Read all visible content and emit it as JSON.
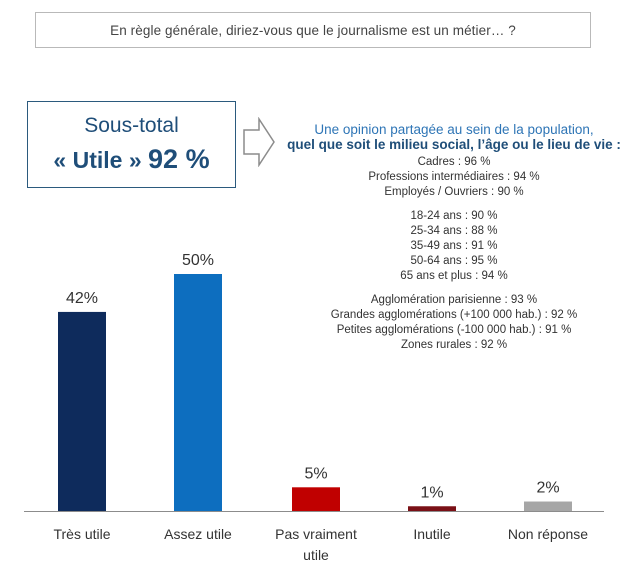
{
  "question": "En règle générale, diriez-vous que le journalisme est un métier… ?",
  "subtotal": {
    "title": "Sous-total",
    "label": "« Utile »",
    "value": "92 %"
  },
  "breakdown": {
    "heading_line1": "Une opinion partagée au sein de la population,",
    "heading_line2": "quel que soit le milieu social, l’âge ou le lieu de vie :",
    "groups": [
      [
        "Cadres : 96 %",
        "Professions intermédiaires : 94 %",
        "Employés / Ouvriers : 90 %"
      ],
      [
        "18-24 ans : 90 %",
        "25-34 ans : 88 %",
        "35-49 ans : 91 %",
        "50-64 ans : 95 %",
        "65 ans et plus : 94 %"
      ],
      [
        "Agglomération parisienne : 93 %",
        "Grandes agglomérations (+100 000 hab.) : 92 %",
        "Petites agglomérations (-100 000 hab.) : 91 %",
        "Zones rurales : 92 %"
      ]
    ]
  },
  "colors": {
    "tres_utile": "#0e2b5c",
    "assez_utile": "#0d6ebf",
    "pas_vraiment_utile": "#c00000",
    "inutile": "#7a1016",
    "non_reponse": "#a6a6a6",
    "baseline": "#8c8c8c"
  },
  "chart_data": {
    "type": "bar",
    "title": "",
    "xlabel": "",
    "ylabel": "",
    "ylim": [
      0,
      50
    ],
    "categories": [
      "Très utile",
      "Assez utile",
      "Pas vraiment utile",
      "Inutile",
      "Non réponse"
    ],
    "values": [
      42,
      50,
      5,
      1,
      2
    ],
    "value_labels": [
      "42%",
      "50%",
      "5%",
      "1%",
      "2%"
    ],
    "category_lines": [
      [
        "Très utile"
      ],
      [
        "Assez utile"
      ],
      [
        "Pas vraiment",
        "utile"
      ],
      [
        "Inutile"
      ],
      [
        "Non réponse"
      ]
    ],
    "bar_colors": [
      "#0e2b5c",
      "#0d6ebf",
      "#c00000",
      "#7a1016",
      "#a6a6a6"
    ]
  }
}
